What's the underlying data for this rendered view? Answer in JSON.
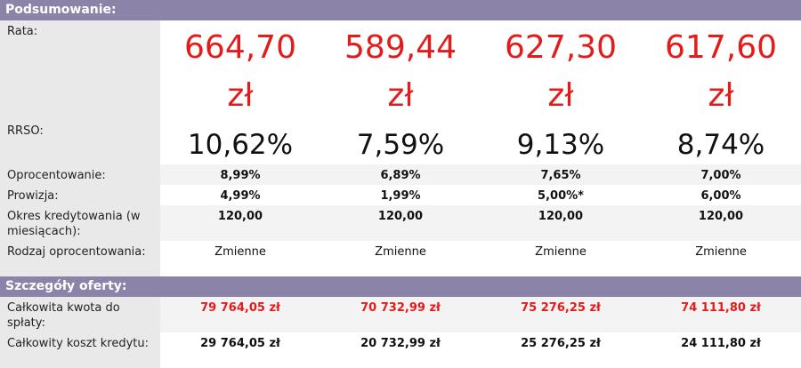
{
  "summary": {
    "header": "Podsumowanie:",
    "rows": {
      "rata": {
        "label": "Rata:",
        "values": [
          {
            "amount": "664,70",
            "currency": "zł"
          },
          {
            "amount": "589,44",
            "currency": "zł"
          },
          {
            "amount": "627,30",
            "currency": "zł"
          },
          {
            "amount": "617,60",
            "currency": "zł"
          }
        ]
      },
      "rrso": {
        "label": "RRSO:",
        "values": [
          "10,62%",
          "7,59%",
          "9,13%",
          "8,74%"
        ]
      },
      "oprocentowanie": {
        "label": "Oprocentowanie:",
        "values": [
          "8,99%",
          "6,89%",
          "7,65%",
          "7,00%"
        ]
      },
      "prowizja": {
        "label": "Prowizja:",
        "values": [
          "4,99%",
          "1,99%",
          "5,00%*",
          "6,00%"
        ]
      },
      "okres": {
        "label": "Okres kredytowania (w miesiącach):",
        "values": [
          "120,00",
          "120,00",
          "120,00",
          "120,00"
        ]
      },
      "rodzaj": {
        "label": "Rodzaj oprocentowania:",
        "values": [
          "Zmienne",
          "Zmienne",
          "Zmienne",
          "Zmienne"
        ]
      }
    }
  },
  "details": {
    "header": "Szczegóły oferty:",
    "rows": {
      "kwota": {
        "label": "Całkowita kwota do spłaty:",
        "values": [
          "79 764,05 zł",
          "70 732,99 zł",
          "75 276,25 zł",
          "74 111,80 zł"
        ]
      },
      "koszt": {
        "label": "Całkowity koszt kredytu:",
        "values": [
          "29 764,05 zł",
          "20 732,99 zł",
          "25 276,25 zł",
          "24 111,80 zł"
        ]
      }
    }
  },
  "colors": {
    "header_bg": "#8c84a8",
    "accent_red": "#e41b1b",
    "label_bg": "#e9e9e9"
  }
}
